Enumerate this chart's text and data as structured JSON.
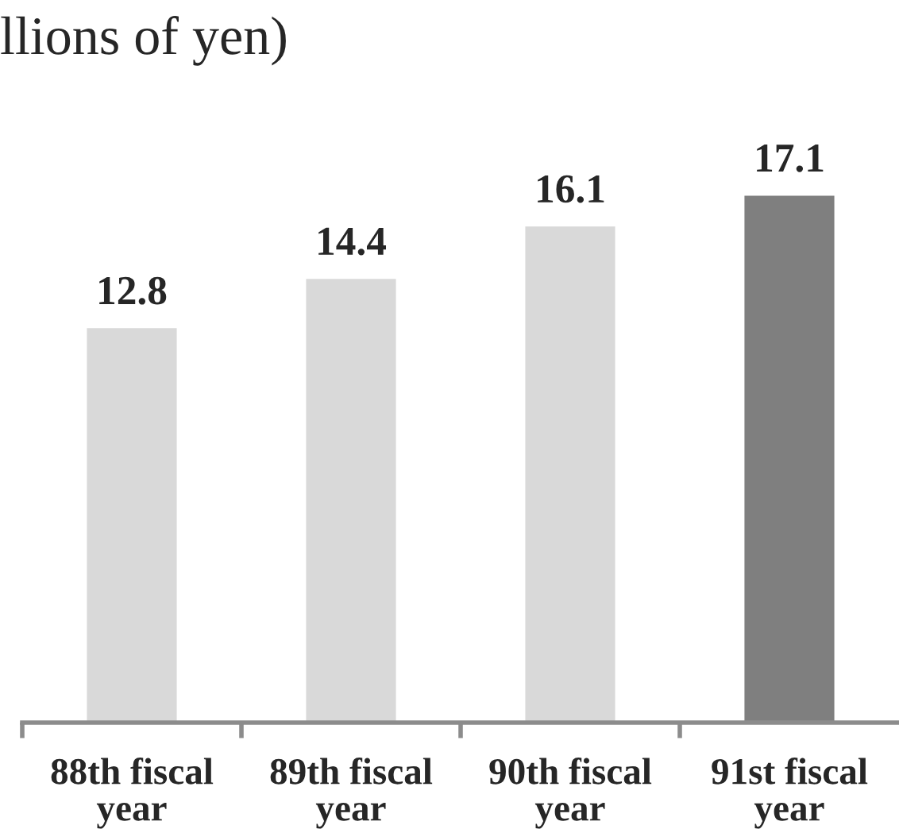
{
  "chart_data": {
    "type": "bar",
    "title": "llions of yen)",
    "categories": [
      "88th fiscal\nyear",
      "89th fiscal\nyear",
      "90th fiscal\nyear",
      "91st fiscal\nyear"
    ],
    "values": [
      12.8,
      14.4,
      16.1,
      17.1
    ],
    "colors": [
      "#d9d9d9",
      "#d9d9d9",
      "#d9d9d9",
      "#7f7f7f"
    ],
    "data_labels": true,
    "grid": false,
    "legend": false
  }
}
